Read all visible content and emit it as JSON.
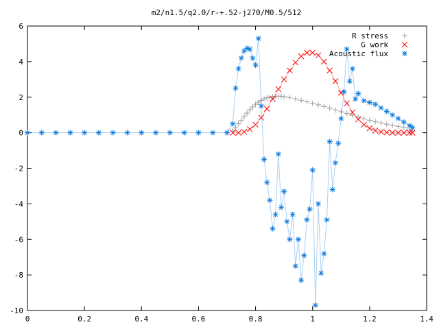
{
  "chart_data": {
    "type": "scatter",
    "title": "m2/n1.5/q2.0/r-+.52-j270/M0.5/512",
    "xlabel": "",
    "ylabel": "",
    "xlim": [
      0,
      1.4
    ],
    "ylim": [
      -10,
      6
    ],
    "x_ticks": [
      "0",
      "0.2",
      "0.4",
      "0.6",
      "0.8",
      "1",
      "1.2",
      "1.4"
    ],
    "y_ticks": [
      "6",
      "4",
      "2",
      "0",
      "-2",
      "-4",
      "-6",
      "-8",
      "-10"
    ],
    "grid": false,
    "legend_position": "top-right",
    "series": [
      {
        "name": "R stress",
        "marker": "+",
        "color": "#a0a0a0",
        "x": [
          0.72,
          0.73,
          0.74,
          0.75,
          0.76,
          0.77,
          0.78,
          0.79,
          0.8,
          0.81,
          0.82,
          0.83,
          0.84,
          0.85,
          0.86,
          0.87,
          0.88,
          0.89,
          0.9,
          0.92,
          0.94,
          0.96,
          0.98,
          1.0,
          1.02,
          1.04,
          1.06,
          1.08,
          1.1,
          1.12,
          1.14,
          1.16,
          1.18,
          1.2,
          1.22,
          1.24,
          1.26,
          1.28,
          1.3,
          1.32,
          1.34,
          1.35
        ],
        "y": [
          0.1,
          0.3,
          0.5,
          0.7,
          0.9,
          1.1,
          1.3,
          1.45,
          1.6,
          1.72,
          1.82,
          1.9,
          1.96,
          2.0,
          2.03,
          2.05,
          2.06,
          2.05,
          2.03,
          1.98,
          1.9,
          1.82,
          1.74,
          1.65,
          1.57,
          1.48,
          1.38,
          1.28,
          1.18,
          1.08,
          0.98,
          0.88,
          0.78,
          0.7,
          0.62,
          0.55,
          0.48,
          0.42,
          0.36,
          0.3,
          0.2,
          0.1
        ]
      },
      {
        "name": "G work",
        "marker": "x",
        "color": "#ff0000",
        "x": [
          0.72,
          0.74,
          0.76,
          0.78,
          0.8,
          0.82,
          0.84,
          0.86,
          0.88,
          0.9,
          0.92,
          0.94,
          0.96,
          0.98,
          1.0,
          1.02,
          1.04,
          1.06,
          1.08,
          1.1,
          1.12,
          1.14,
          1.16,
          1.18,
          1.2,
          1.22,
          1.24,
          1.26,
          1.28,
          1.3,
          1.32,
          1.34,
          1.35
        ],
        "y": [
          0.0,
          0.0,
          0.05,
          0.2,
          0.45,
          0.85,
          1.35,
          1.9,
          2.45,
          3.0,
          3.5,
          3.95,
          4.3,
          4.5,
          4.5,
          4.35,
          4.0,
          3.5,
          2.9,
          2.25,
          1.65,
          1.15,
          0.75,
          0.45,
          0.25,
          0.12,
          0.05,
          0.02,
          0.0,
          0.0,
          0.0,
          0.0,
          0.0
        ]
      },
      {
        "name": "Acoustic flux",
        "marker": "*",
        "color": "#0a78dc",
        "x": [
          0.0,
          0.05,
          0.1,
          0.15,
          0.2,
          0.25,
          0.3,
          0.35,
          0.4,
          0.45,
          0.5,
          0.55,
          0.6,
          0.65,
          0.7,
          0.72,
          0.73,
          0.74,
          0.75,
          0.76,
          0.77,
          0.78,
          0.79,
          0.8,
          0.81,
          0.82,
          0.83,
          0.84,
          0.85,
          0.86,
          0.87,
          0.88,
          0.89,
          0.9,
          0.91,
          0.92,
          0.93,
          0.94,
          0.95,
          0.96,
          0.97,
          0.98,
          0.99,
          1.0,
          1.01,
          1.02,
          1.03,
          1.04,
          1.05,
          1.06,
          1.07,
          1.08,
          1.09,
          1.1,
          1.11,
          1.12,
          1.13,
          1.14,
          1.15,
          1.16,
          1.18,
          1.2,
          1.22,
          1.24,
          1.26,
          1.28,
          1.3,
          1.32,
          1.34,
          1.35
        ],
        "y": [
          0.0,
          0.0,
          0.0,
          0.0,
          0.0,
          0.0,
          0.0,
          0.0,
          0.0,
          0.0,
          0.0,
          0.0,
          0.0,
          0.0,
          0.0,
          0.5,
          2.5,
          3.6,
          4.2,
          4.6,
          4.75,
          4.7,
          4.2,
          3.8,
          5.3,
          1.5,
          -1.5,
          -2.8,
          -3.8,
          -5.4,
          -4.6,
          -1.2,
          -4.2,
          -3.3,
          -5.0,
          -6.0,
          -4.6,
          -7.5,
          -6.0,
          -8.3,
          -6.9,
          -4.9,
          -4.3,
          -2.1,
          -9.7,
          -4.0,
          -7.9,
          -6.8,
          -4.9,
          -0.5,
          -3.2,
          -1.7,
          -0.6,
          0.8,
          2.3,
          4.7,
          2.9,
          3.6,
          1.9,
          2.2,
          1.8,
          1.7,
          1.6,
          1.4,
          1.2,
          1.0,
          0.8,
          0.6,
          0.4,
          0.3
        ]
      }
    ]
  }
}
